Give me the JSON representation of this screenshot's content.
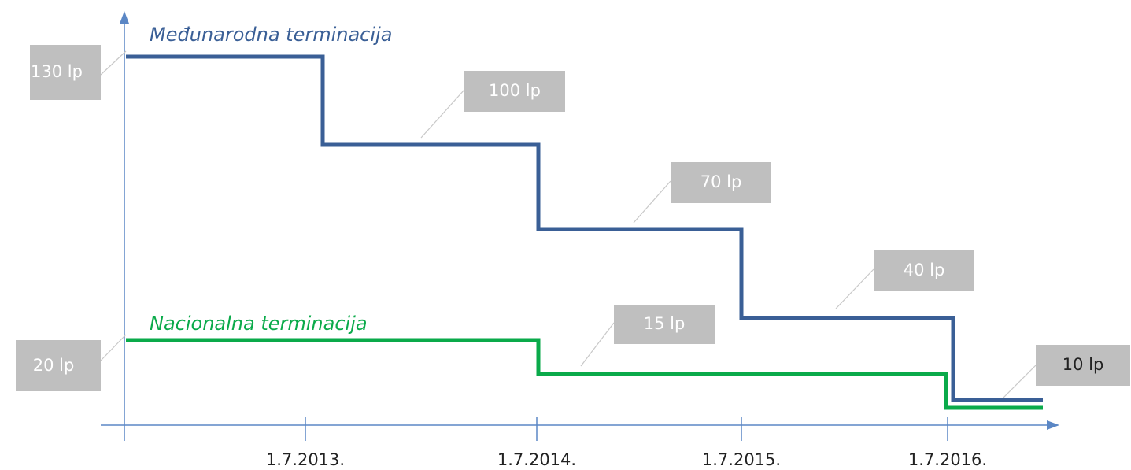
{
  "series": [
    {
      "name": "Međunarodna terminacija",
      "labels": [
        "130 lp",
        "100 lp",
        "70 lp",
        "40 lp",
        "10 lp"
      ]
    },
    {
      "name": "Nacionalna terminacija",
      "labels": [
        "20 lp",
        "15 lp"
      ]
    }
  ],
  "x_labels": [
    "1.7.2013.",
    "1.7.2014.",
    "1.7.2015.",
    "1.7.2016."
  ]
}
